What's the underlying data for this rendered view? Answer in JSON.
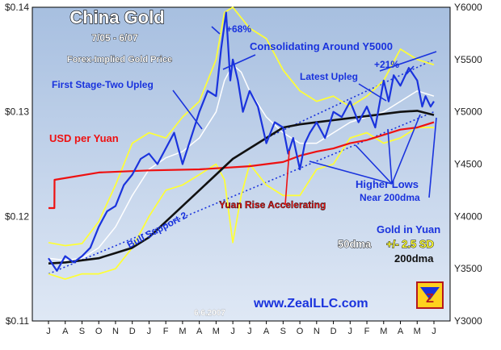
{
  "chart_data": {
    "type": "line",
    "title": "China Gold",
    "subtitle": "7/05 - 6/07",
    "note": "Forex-Implied Gold Price",
    "date_stamp": "6.6.2007",
    "watermark": "www.ZealLLC.com",
    "logo_text": "Z",
    "x_ticks": [
      "J",
      "A",
      "S",
      "O",
      "N",
      "D",
      "J",
      "F",
      "M",
      "A",
      "M",
      "J",
      "J",
      "A",
      "S",
      "O",
      "N",
      "D",
      "J",
      "F",
      "M",
      "A",
      "M",
      "J"
    ],
    "left_axis": {
      "label": "",
      "ticks": [
        "$0.14",
        "$0.13",
        "$0.12",
        "$0.11"
      ],
      "range": [
        0.11,
        0.14
      ]
    },
    "right_axis": {
      "label": "",
      "ticks": [
        "Y6000",
        "Y5500",
        "Y5000",
        "Y4500",
        "Y4000",
        "Y3500",
        "Y3000"
      ],
      "range": [
        3000,
        6000
      ]
    },
    "legend_items": [
      "Gold in Yuan",
      "50dma",
      "+/- 2.5 SD",
      "200dma"
    ],
    "series": [
      {
        "name": "USD per Yuan",
        "axis": "left",
        "color": "#ee1111",
        "x": [
          0,
          0.35,
          0.36,
          3.0,
          6,
          9,
          12,
          13,
          14,
          15,
          16,
          17,
          18,
          19,
          20,
          21,
          22,
          23
        ],
        "values": [
          0.1208,
          0.1208,
          0.1235,
          0.1242,
          0.1244,
          0.1245,
          0.1248,
          0.125,
          0.1252,
          0.1258,
          0.1262,
          0.1265,
          0.127,
          0.1273,
          0.1278,
          0.1283,
          0.1285,
          0.129
        ]
      },
      {
        "name": "Gold in Yuan",
        "axis": "right",
        "color": "#1a33dd",
        "x": [
          0,
          0.5,
          1,
          1.5,
          2,
          2.5,
          3,
          3.5,
          4,
          4.5,
          5,
          5.5,
          6,
          6.5,
          7,
          7.5,
          8,
          8.5,
          9,
          9.5,
          10,
          10.3,
          10.6,
          10.85,
          11,
          11.3,
          11.6,
          12,
          12.5,
          13,
          13.5,
          14,
          14.3,
          14.6,
          15,
          15.3,
          15.6,
          16,
          16.5,
          17,
          17.5,
          18,
          18.5,
          19,
          19.5,
          20,
          20.3,
          20.6,
          21,
          21.5,
          22,
          22.3,
          22.5,
          22.8,
          23
        ],
        "values": [
          3600,
          3480,
          3620,
          3560,
          3620,
          3700,
          3900,
          4050,
          4100,
          4300,
          4400,
          4550,
          4600,
          4500,
          4650,
          4800,
          4500,
          4750,
          5000,
          5200,
          5150,
          5600,
          5950,
          5300,
          5500,
          5300,
          5000,
          5200,
          5050,
          4700,
          4900,
          4850,
          4600,
          4750,
          4450,
          4700,
          4800,
          4900,
          4750,
          5000,
          4950,
          5100,
          4900,
          5050,
          4850,
          5300,
          5100,
          5350,
          5250,
          5420,
          5300,
          5050,
          5150,
          5050,
          5100
        ]
      },
      {
        "name": "50dma",
        "axis": "right",
        "color": "#ffffff",
        "x": [
          0,
          1,
          2,
          3,
          4,
          5,
          6,
          7,
          8,
          9,
          10,
          10.5,
          11,
          11.5,
          12,
          13,
          14,
          15,
          16,
          17,
          18,
          19,
          20,
          21,
          22,
          23
        ],
        "values": [
          3600,
          3580,
          3600,
          3700,
          3900,
          4200,
          4450,
          4560,
          4620,
          4750,
          5000,
          5300,
          5450,
          5380,
          5200,
          4950,
          4800,
          4700,
          4700,
          4800,
          4900,
          4950,
          5000,
          5100,
          5200,
          5150
        ]
      },
      {
        "name": "+2.5 SD",
        "axis": "right",
        "color": "#ffff33",
        "x": [
          0,
          1,
          2,
          3,
          4,
          5,
          6,
          7,
          8,
          9,
          10,
          10.5,
          11,
          11.5,
          12,
          13,
          14,
          15,
          16,
          17,
          18,
          19,
          20,
          21,
          22,
          23
        ],
        "values": [
          3750,
          3720,
          3740,
          3950,
          4300,
          4700,
          4800,
          4750,
          4950,
          5100,
          5500,
          5950,
          6000,
          5900,
          5800,
          5700,
          5400,
          5200,
          5100,
          5150,
          5050,
          5150,
          5300,
          5600,
          5500,
          5450
        ]
      },
      {
        "name": "-2.5 SD",
        "axis": "right",
        "color": "#ffff33",
        "x": [
          0,
          1,
          2,
          3,
          4,
          5,
          6,
          7,
          8,
          9,
          10,
          10.5,
          11,
          11.5,
          12,
          13,
          14,
          15,
          16,
          17,
          18,
          19,
          20,
          21,
          22,
          23
        ],
        "values": [
          3450,
          3400,
          3450,
          3450,
          3500,
          3700,
          4000,
          4250,
          4300,
          4400,
          4500,
          4350,
          3750,
          4200,
          4500,
          4300,
          4200,
          4200,
          4450,
          4500,
          4750,
          4800,
          4700,
          4750,
          4850,
          4850
        ]
      },
      {
        "name": "200dma",
        "axis": "right",
        "color": "#111111",
        "x": [
          0,
          1,
          2,
          3,
          4,
          5,
          6,
          7,
          8,
          9,
          10,
          11,
          12,
          13,
          14,
          15,
          16,
          17,
          18,
          19,
          20,
          21,
          22,
          23
        ],
        "values": [
          3550,
          3560,
          3580,
          3600,
          3650,
          3700,
          3800,
          3950,
          4100,
          4250,
          4400,
          4550,
          4650,
          4750,
          4850,
          4880,
          4900,
          4920,
          4940,
          4960,
          4980,
          5000,
          5010,
          4970
        ]
      }
    ],
    "trend_lines": [
      {
        "name": "Bull Support 2",
        "color": "#1a33dd",
        "from": [
          0,
          3450
        ],
        "to": [
          23,
          5000
        ]
      },
      {
        "name": "upper channel",
        "color": "#1a33dd",
        "from": [
          13,
          4750
        ],
        "to": [
          23,
          5500
        ]
      }
    ],
    "annotations": [
      {
        "text": "+68%",
        "color": "#1a33dd"
      },
      {
        "text": "Consolidating Around Y5000",
        "color": "#1a33dd"
      },
      {
        "text": "+21%",
        "color": "#1a33dd"
      },
      {
        "text": "Latest Upleg",
        "color": "#1a33dd"
      },
      {
        "text": "First Stage-Two Upleg",
        "color": "#1a33dd"
      },
      {
        "text": "USD per Yuan",
        "color": "#ee1111"
      },
      {
        "text": "Higher Lows",
        "color": "#1a33dd"
      },
      {
        "text": "Near 200dma",
        "color": "#1a33dd"
      },
      {
        "text": "Yuan Rise Accelerating",
        "color": "#ee1111"
      },
      {
        "text": "Bull Support 2",
        "color": "#1a33dd"
      }
    ],
    "colors": {
      "plot_bg_top": "#a7bfe0",
      "plot_bg_bottom": "#dfe8f5",
      "border": "#000000"
    },
    "grid": false
  }
}
